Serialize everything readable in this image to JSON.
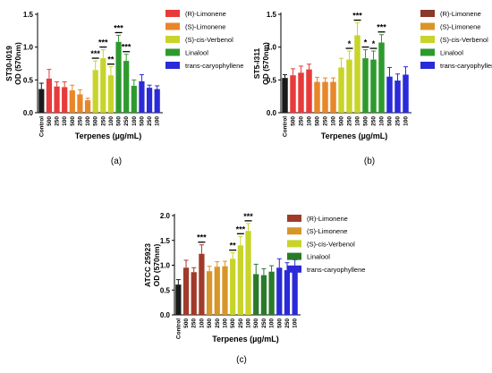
{
  "chart_data": [
    {
      "panel_label": "(a)",
      "type": "bar",
      "ylabel": "ST30-I019\nOD (570nm)",
      "xlabel": "Terpenes (µg/mL)",
      "ylim": [
        0,
        1.5
      ],
      "yticks": [
        "0.0",
        "0.5",
        "1.0",
        "1.5"
      ],
      "categories": [
        "Control",
        "500",
        "250",
        "100",
        "500",
        "250",
        "100",
        "500",
        "250",
        "100",
        "500",
        "250",
        "100",
        "500",
        "250",
        "100"
      ],
      "values": [
        0.36,
        0.52,
        0.4,
        0.39,
        0.34,
        0.28,
        0.19,
        0.65,
        0.83,
        0.57,
        1.08,
        0.79,
        0.41,
        0.48,
        0.38,
        0.36
      ],
      "errors": [
        0.09,
        0.14,
        0.07,
        0.08,
        0.08,
        0.07,
        0.03,
        0.14,
        0.13,
        0.13,
        0.1,
        0.1,
        0.09,
        0.1,
        0.04,
        0.05
      ],
      "significance": [
        "",
        "",
        "",
        "",
        "",
        "",
        "",
        "***",
        "***",
        "**",
        "***",
        "***",
        "",
        "",
        "",
        ""
      ],
      "legend": [
        "(R)-Limonene",
        "(S)-Limonene",
        "(S)-cis-Verbenol",
        "Linalool",
        "trans-caryophyllene"
      ],
      "legend_italic": [
        "R",
        "S",
        "S cis",
        "",
        "trans"
      ]
    },
    {
      "panel_label": "(b)",
      "type": "bar",
      "ylabel": "ST5-I311\nOD (570nm)",
      "xlabel": "Terpenes (µg/mL)",
      "ylim": [
        0,
        1.5
      ],
      "yticks": [
        "0.0",
        "0.5",
        "1.0",
        "1.5"
      ],
      "categories": [
        "Control",
        "500",
        "250",
        "100",
        "500",
        "250",
        "100",
        "500",
        "250",
        "100",
        "500",
        "250",
        "100",
        "500",
        "250",
        "100"
      ],
      "values": [
        0.53,
        0.57,
        0.61,
        0.66,
        0.47,
        0.47,
        0.47,
        0.69,
        0.81,
        1.18,
        0.83,
        0.81,
        1.07,
        0.55,
        0.49,
        0.58
      ],
      "errors": [
        0.05,
        0.1,
        0.1,
        0.08,
        0.07,
        0.06,
        0.06,
        0.14,
        0.13,
        0.19,
        0.13,
        0.13,
        0.12,
        0.14,
        0.1,
        0.12
      ],
      "significance": [
        "",
        "",
        "",
        "",
        "",
        "",
        "",
        "",
        "*",
        "***",
        "*",
        "*",
        "***",
        "",
        "",
        ""
      ],
      "legend": [
        "(R)-Limonene",
        "(S)-Limonene",
        "(S)-cis-Verbenol",
        "Linalool",
        "trans-caryophyllene"
      ]
    },
    {
      "panel_label": "(c)",
      "type": "bar",
      "ylabel": "ATCC 25923\nOD (570nm)",
      "xlabel": "Terpenes (µg/mL)",
      "ylim": [
        0,
        2.0
      ],
      "yticks": [
        "0.0",
        "0.5",
        "1.0",
        "1.5",
        "2.0"
      ],
      "categories": [
        "Control",
        "500",
        "250",
        "100",
        "500",
        "250",
        "100",
        "500",
        "250",
        "100",
        "500",
        "250",
        "100",
        "500",
        "250",
        "100"
      ],
      "values": [
        0.61,
        0.95,
        0.86,
        1.23,
        0.88,
        0.97,
        0.98,
        1.13,
        1.4,
        1.69,
        0.82,
        0.8,
        0.87,
        0.95,
        0.9,
        0.95
      ],
      "errors": [
        0.1,
        0.15,
        0.09,
        0.18,
        0.1,
        0.1,
        0.1,
        0.12,
        0.18,
        0.15,
        0.2,
        0.13,
        0.12,
        0.18,
        0.15,
        0.16
      ],
      "significance": [
        "",
        "",
        "",
        "***",
        "",
        "",
        "",
        "**",
        "***",
        "***",
        "",
        "",
        "",
        "",
        "",
        ""
      ],
      "legend": [
        "(R)-Limonene",
        "(S)-Limonene",
        "(S)-cis-Verbenol",
        "Linalool",
        "trans-caryophyllene"
      ]
    }
  ],
  "colors": {
    "control": "#1a1a1a",
    "panel_a_b": [
      "#1a1a1a",
      "#e83a3a",
      "#e83a3a",
      "#e83a3a",
      "#e8862a",
      "#e8862a",
      "#e8862a",
      "#c8d42a",
      "#c8d42a",
      "#c8d42a",
      "#2e9a2e",
      "#2e9a2e",
      "#2e9a2e",
      "#2a2ad8",
      "#2a2ad8",
      "#2a2ad8"
    ],
    "panel_c": [
      "#1a1a1a",
      "#a03a2a",
      "#a03a2a",
      "#a03a2a",
      "#d8962a",
      "#d8962a",
      "#d8962a",
      "#c8d42a",
      "#c8d42a",
      "#c8d42a",
      "#2a7a2a",
      "#2a7a2a",
      "#2a7a2a",
      "#2a2ad8",
      "#2a2ad8",
      "#2a2ad8"
    ],
    "legend_a": [
      "#e83a3a",
      "#e8862a",
      "#c8d42a",
      "#2e9a2e",
      "#2a2ad8"
    ],
    "legend_b": [
      "#8a3a2a",
      "#d8962a",
      "#c8d42a",
      "#2e9a2e",
      "#2a2ad8"
    ],
    "legend_c": [
      "#a03a2a",
      "#d8962a",
      "#c8d42a",
      "#2a7a2a",
      "#2a2ad8"
    ]
  }
}
